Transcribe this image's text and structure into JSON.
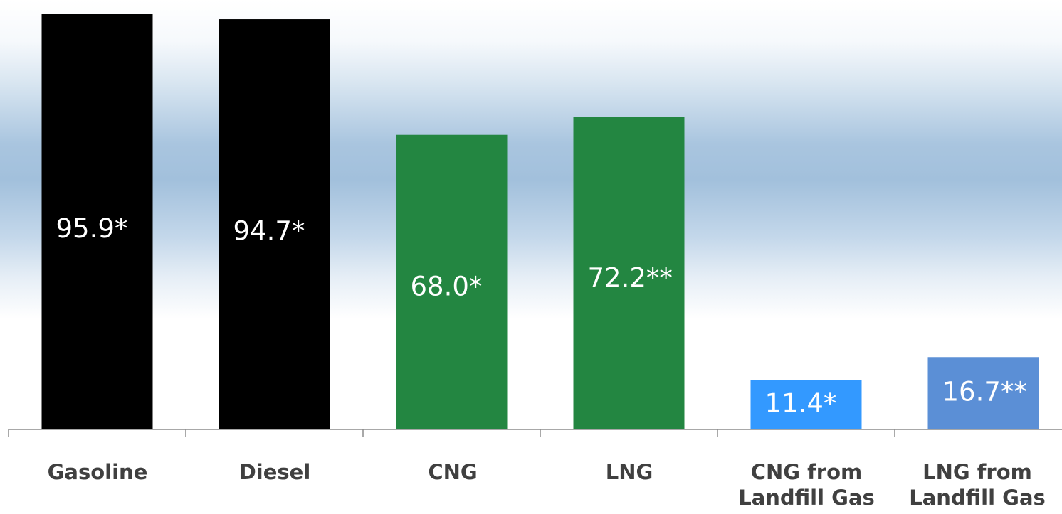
{
  "chart_data": {
    "type": "bar",
    "categories": [
      "Gasoline",
      "Diesel",
      "CNG",
      "LNG",
      "CNG from\nLandfill Gas",
      "LNG from\nLandfill Gas"
    ],
    "values": [
      95.9,
      94.7,
      68.0,
      72.2,
      11.4,
      16.7
    ],
    "data_labels": [
      "95.9*",
      "94.7*",
      "68.0*",
      "72.2**",
      "11.4*",
      "16.7**"
    ],
    "bar_colors": [
      "#000000",
      "#000000",
      "#238641",
      "#238641",
      "#3399ff",
      "#5b8fd6"
    ],
    "ylim": [
      0,
      97.5
    ],
    "grid": false,
    "legend": "none"
  }
}
